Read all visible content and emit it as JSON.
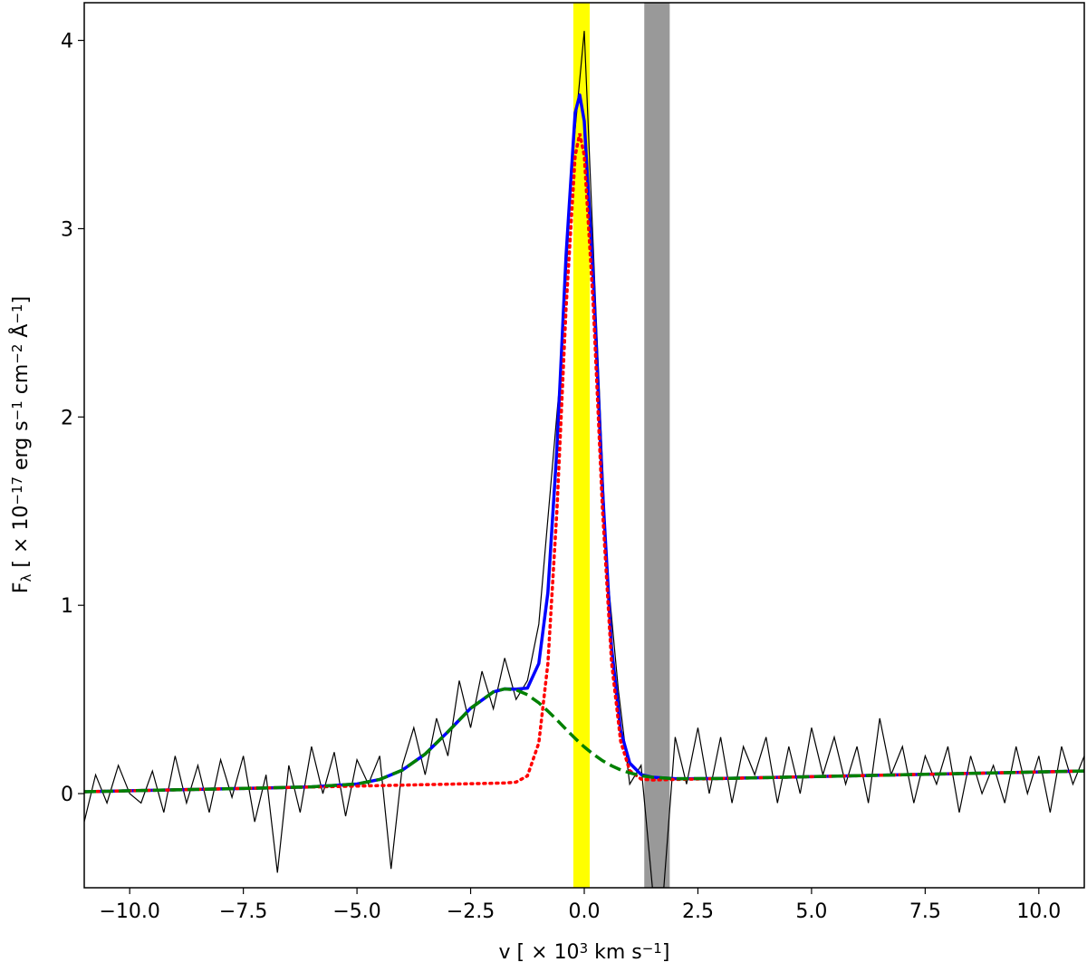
{
  "chart_data": {
    "type": "line",
    "x_label_parts": [
      {
        "text": "v [ × 10"
      },
      {
        "text": "3",
        "shift": "super"
      },
      {
        "text": " km s"
      },
      {
        "text": "−1",
        "shift": "super"
      },
      {
        "text": "]"
      }
    ],
    "y_label_parts": [
      {
        "text": "F"
      },
      {
        "text": "λ",
        "shift": "sub"
      },
      {
        "text": " [ × 10"
      },
      {
        "text": "−17",
        "shift": "super"
      },
      {
        "text": " erg s"
      },
      {
        "text": "−1",
        "shift": "super"
      },
      {
        "text": " cm"
      },
      {
        "text": "−2",
        "shift": "super"
      },
      {
        "text": " Å"
      },
      {
        "text": "−1",
        "shift": "super"
      },
      {
        "text": "]"
      }
    ],
    "xlim": [
      -11,
      11
    ],
    "ylim": [
      -0.5,
      4.2
    ],
    "xticks": [
      {
        "value": -10,
        "label": "−10.0"
      },
      {
        "value": -7.5,
        "label": "−7.5"
      },
      {
        "value": -5,
        "label": "−5.0"
      },
      {
        "value": -2.5,
        "label": "−2.5"
      },
      {
        "value": 0,
        "label": "0.0"
      },
      {
        "value": 2.5,
        "label": "2.5"
      },
      {
        "value": 5,
        "label": "5.0"
      },
      {
        "value": 7.5,
        "label": "7.5"
      },
      {
        "value": 10,
        "label": "10.0"
      }
    ],
    "yticks": [
      0,
      1,
      2,
      3,
      4
    ],
    "spans": [
      {
        "xlim": [
          -0.24,
          0.12
        ],
        "color": "#ffff00"
      },
      {
        "xlim": [
          1.32,
          1.88
        ],
        "color": "#999999"
      }
    ],
    "series": [
      {
        "color": "#000000",
        "style": "thin",
        "x": [
          -11,
          -10.75,
          -10.5,
          -10.25,
          -10,
          -9.75,
          -9.5,
          -9.25,
          -9,
          -8.75,
          -8.5,
          -8.25,
          -8,
          -7.75,
          -7.5,
          -7.25,
          -7,
          -6.75,
          -6.5,
          -6.25,
          -6,
          -5.75,
          -5.5,
          -5.25,
          -5,
          -4.75,
          -4.5,
          -4.25,
          -4,
          -3.75,
          -3.5,
          -3.25,
          -3,
          -2.75,
          -2.5,
          -2.25,
          -2,
          -1.75,
          -1.5,
          -1.25,
          -1,
          -0.75,
          -0.5,
          -0.25,
          0,
          0.25,
          0.5,
          0.75,
          1,
          1.25,
          1.5,
          1.75,
          2,
          2.25,
          2.5,
          2.75,
          3,
          3.25,
          3.5,
          3.75,
          4,
          4.25,
          4.5,
          4.75,
          5,
          5.25,
          5.5,
          5.75,
          6,
          6.25,
          6.5,
          6.75,
          7,
          7.25,
          7.5,
          7.75,
          8,
          8.25,
          8.5,
          8.75,
          9,
          9.25,
          9.5,
          9.75,
          10,
          10.25,
          10.5,
          10.75,
          11
        ],
        "values": [
          -0.15,
          0.1,
          -0.05,
          0.15,
          0.0,
          -0.05,
          0.12,
          -0.1,
          0.2,
          -0.05,
          0.15,
          -0.1,
          0.18,
          -0.02,
          0.2,
          -0.15,
          0.1,
          -0.42,
          0.15,
          -0.1,
          0.25,
          0.0,
          0.22,
          -0.12,
          0.18,
          0.05,
          0.2,
          -0.4,
          0.15,
          0.35,
          0.1,
          0.4,
          0.2,
          0.6,
          0.35,
          0.65,
          0.45,
          0.72,
          0.5,
          0.6,
          0.9,
          1.6,
          2.3,
          3.4,
          4.05,
          2.6,
          1.2,
          0.55,
          0.05,
          0.15,
          -0.5,
          -0.5,
          0.3,
          0.05,
          0.35,
          0.0,
          0.3,
          -0.05,
          0.25,
          0.1,
          0.3,
          -0.05,
          0.25,
          0.0,
          0.35,
          0.1,
          0.3,
          0.05,
          0.25,
          -0.05,
          0.4,
          0.1,
          0.25,
          -0.05,
          0.2,
          0.05,
          0.25,
          -0.1,
          0.2,
          0.0,
          0.15,
          -0.05,
          0.25,
          0.0,
          0.2,
          -0.1,
          0.25,
          0.05,
          0.2
        ]
      },
      {
        "color": "#0000ff",
        "style": "solid",
        "x": [
          -11,
          -9,
          -7,
          -6,
          -5,
          -4.5,
          -4,
          -3.5,
          -3,
          -2.5,
          -2,
          -1.75,
          -1.5,
          -1.25,
          -1,
          -0.8,
          -0.6,
          -0.4,
          -0.2,
          -0.1,
          0,
          0.2,
          0.4,
          0.6,
          0.8,
          1,
          1.25,
          1.5,
          2,
          3,
          5,
          7,
          9,
          11
        ],
        "values": [
          0.01,
          0.02,
          0.03,
          0.036,
          0.051,
          0.075,
          0.125,
          0.21,
          0.328,
          0.453,
          0.54,
          0.556,
          0.555,
          0.56,
          0.691,
          1.068,
          1.838,
          2.859,
          3.616,
          3.71,
          3.571,
          2.727,
          1.622,
          0.778,
          0.335,
          0.162,
          0.101,
          0.087,
          0.079,
          0.08,
          0.09,
          0.1,
          0.11,
          0.12
        ]
      },
      {
        "color": "#ff0000",
        "style": "dotted",
        "x": [
          -11,
          -9,
          -7,
          -6,
          -5,
          -4.5,
          -4,
          -3.5,
          -3,
          -2.5,
          -2,
          -1.75,
          -1.5,
          -1.25,
          -1,
          -0.8,
          -0.6,
          -0.4,
          -0.2,
          -0.1,
          0,
          0.2,
          0.4,
          0.6,
          0.8,
          1,
          1.25,
          1.5,
          2,
          3,
          5,
          7,
          9,
          11
        ],
        "values": [
          0.01,
          0.02,
          0.03,
          0.035,
          0.04,
          0.0425,
          0.045,
          0.0475,
          0.05,
          0.0525,
          0.055,
          0.0563,
          0.061,
          0.094,
          0.269,
          0.691,
          1.509,
          2.581,
          3.387,
          3.505,
          3.388,
          2.585,
          1.514,
          0.698,
          0.278,
          0.122,
          0.077,
          0.0725,
          0.075,
          0.08,
          0.09,
          0.1,
          0.11,
          0.12
        ]
      },
      {
        "color": "#008000",
        "style": "dashed",
        "x": [
          -11,
          -9,
          -7,
          -6,
          -5,
          -4.5,
          -4,
          -3.5,
          -3,
          -2.5,
          -2,
          -1.75,
          -1.5,
          -1.25,
          -1,
          -0.8,
          -0.6,
          -0.4,
          -0.2,
          -0.1,
          0,
          0.2,
          0.4,
          0.6,
          0.8,
          1,
          1.25,
          1.5,
          2,
          3,
          5,
          7,
          9,
          11
        ],
        "values": [
          0.01,
          0.02,
          0.03,
          0.036,
          0.051,
          0.075,
          0.125,
          0.21,
          0.328,
          0.453,
          0.54,
          0.556,
          0.551,
          0.525,
          0.482,
          0.438,
          0.391,
          0.341,
          0.293,
          0.27,
          0.248,
          0.209,
          0.175,
          0.148,
          0.126,
          0.11,
          0.095,
          0.087,
          0.079,
          0.08,
          0.09,
          0.1,
          0.11,
          0.12
        ]
      }
    ]
  }
}
